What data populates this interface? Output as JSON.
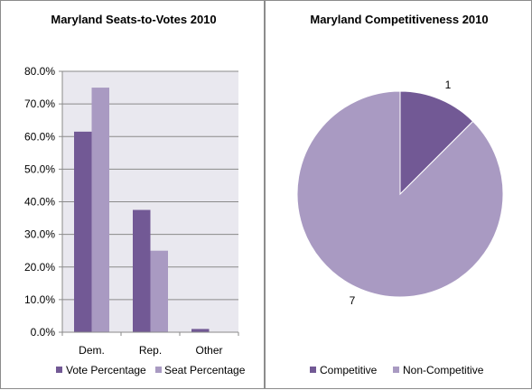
{
  "chart_data": [
    {
      "type": "bar",
      "title": "Maryland Seats-to-Votes 2010",
      "xlabel": "",
      "ylabel": "",
      "categories": [
        "Dem.",
        "Rep.",
        "Other"
      ],
      "series": [
        {
          "name": "Vote Percentage",
          "values": [
            61.5,
            37.5,
            1.0
          ],
          "color": "#725995"
        },
        {
          "name": "Seat Percentage",
          "values": [
            75.0,
            25.0,
            0.0
          ],
          "color": "#a99ac2"
        }
      ],
      "ylim": [
        0,
        80
      ],
      "yticks": [
        0,
        10,
        20,
        30,
        40,
        50,
        60,
        70,
        80
      ],
      "ytick_labels": [
        "0.0%",
        "10.0%",
        "20.0%",
        "30.0%",
        "40.0%",
        "50.0%",
        "60.0%",
        "70.0%",
        "80.0%"
      ],
      "grid": true,
      "plot_background": "#e9e8ef",
      "legend_position": "bottom"
    },
    {
      "type": "pie",
      "title": "Maryland Competitiveness 2010",
      "labels": [
        "Competitive",
        "Non-Competitive"
      ],
      "values": [
        1,
        7
      ],
      "data_labels": [
        "1",
        "7"
      ],
      "colors": [
        "#725995",
        "#a99ac2"
      ],
      "legend_position": "bottom"
    }
  ]
}
